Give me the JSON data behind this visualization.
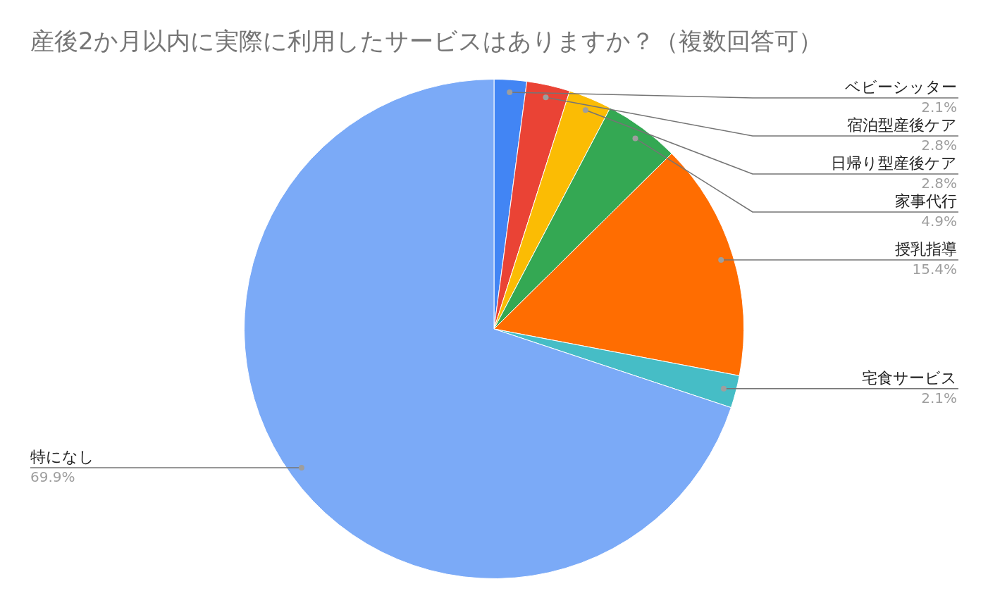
{
  "chart_data": {
    "type": "pie",
    "title": "産後2か月以内に実際に利用したサービスはありますか？（複数回答可）",
    "categories": [
      "ベビーシッター",
      "宿泊型産後ケア",
      "日帰り型産後ケア",
      "家事代行",
      "授乳指導",
      "宅食サービス",
      "特になし"
    ],
    "values": [
      2.1,
      2.8,
      2.8,
      4.9,
      15.4,
      2.1,
      69.9
    ],
    "colors": [
      "#4285f4",
      "#ea4335",
      "#fbbc04",
      "#34a853",
      "#ff6d01",
      "#46bdc6",
      "#7baaf7"
    ],
    "value_labels": [
      "2.1%",
      "2.8%",
      "2.8%",
      "4.9%",
      "15.4%",
      "2.1%",
      "69.9%"
    ]
  }
}
